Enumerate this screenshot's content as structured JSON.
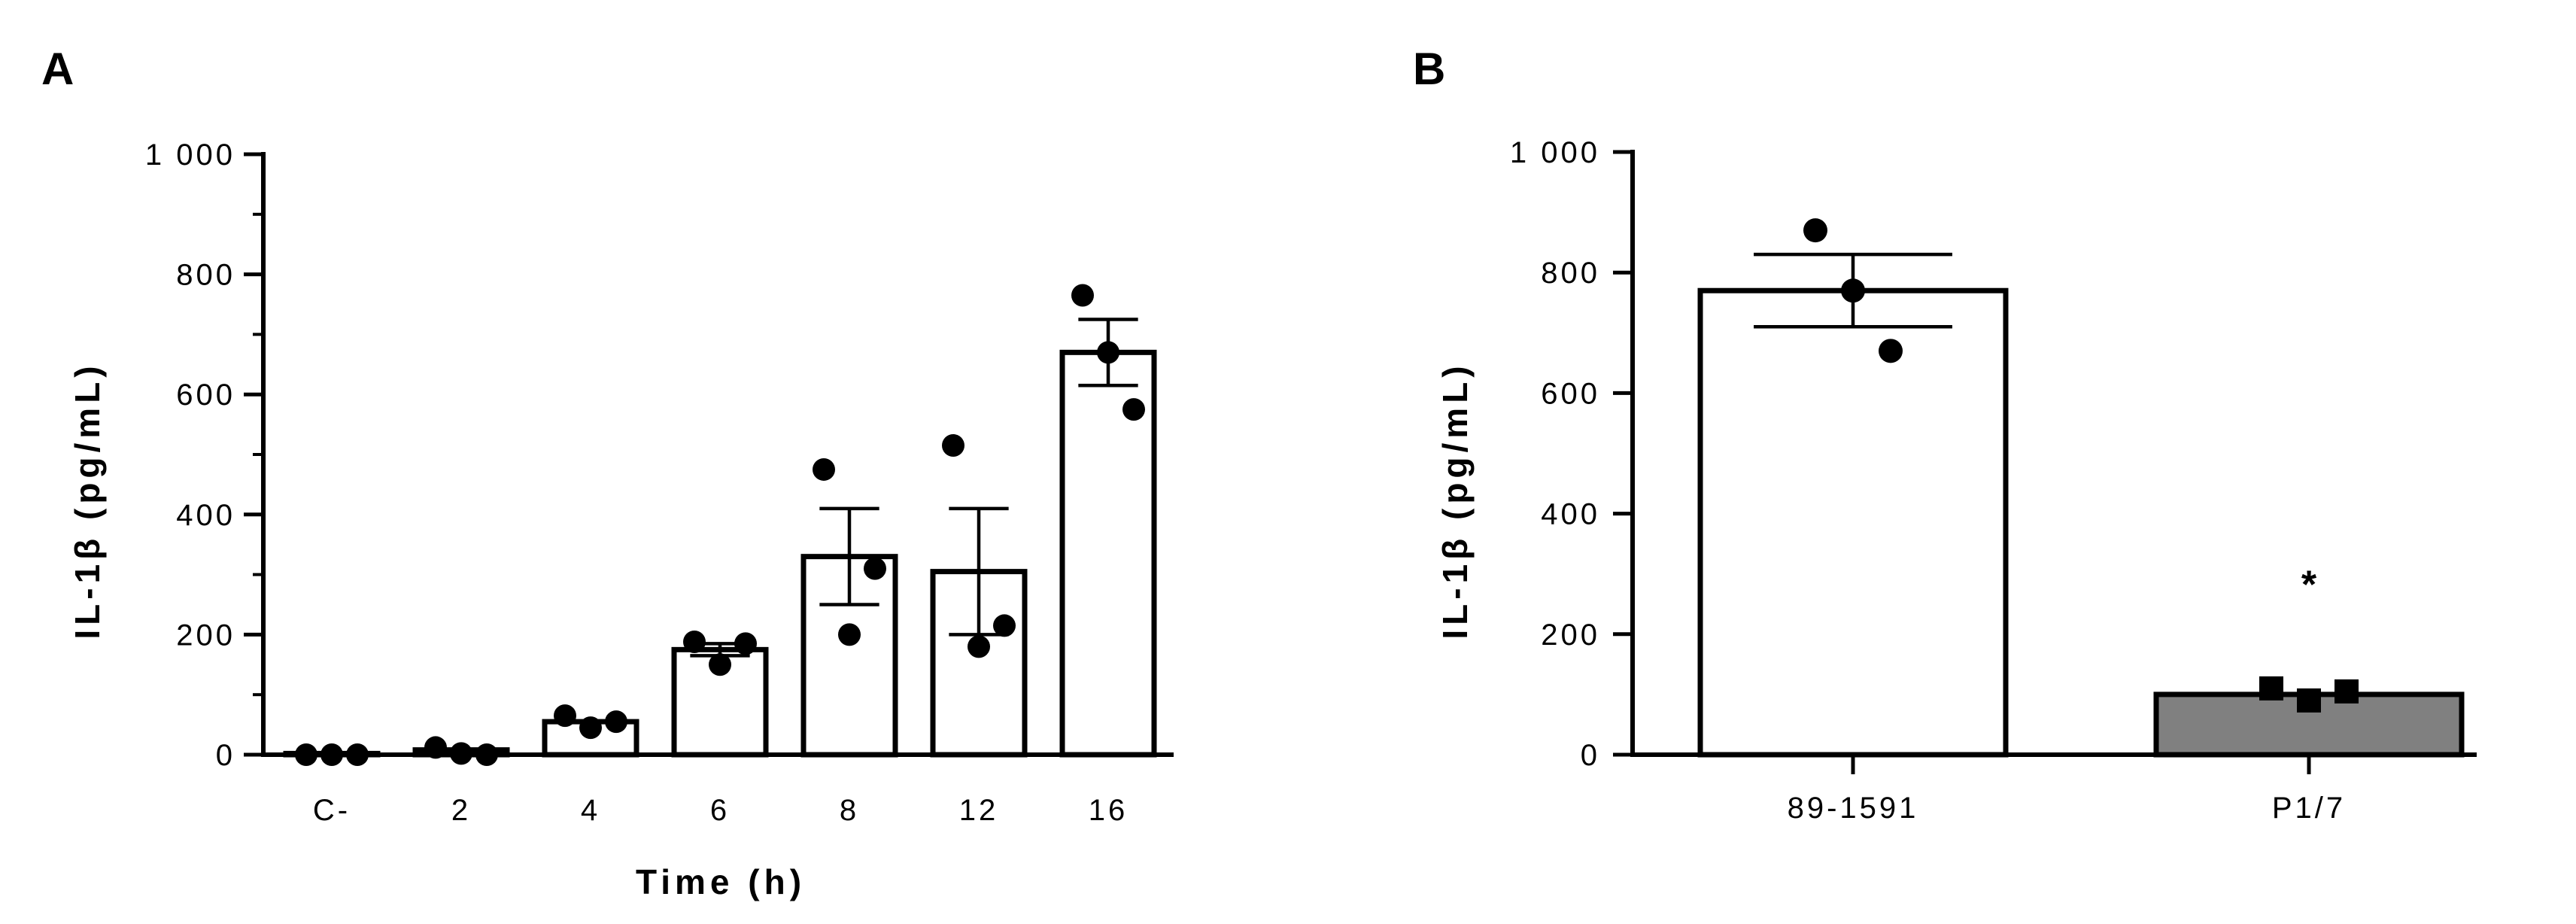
{
  "chart_data": [
    {
      "panel": "A",
      "type": "bar",
      "title": "",
      "xlabel": "Time (h)",
      "ylabel": "IL-1β (pg/mL)",
      "ylim": [
        0,
        1000
      ],
      "yticks": [
        0,
        200,
        400,
        600,
        800,
        1000
      ],
      "ytick_labels": [
        "0",
        "200",
        "400",
        "600",
        "800",
        "1 000"
      ],
      "minor_ticks": [
        100,
        300,
        500,
        700,
        900
      ],
      "categories": [
        "C-",
        "2",
        "4",
        "6",
        "8",
        "12",
        "16"
      ],
      "values": [
        2,
        8,
        55,
        175,
        330,
        305,
        670
      ],
      "errors": [
        0,
        0,
        0,
        10,
        80,
        105,
        55
      ],
      "points": [
        [
          0,
          0,
          0
        ],
        [
          12,
          2,
          0
        ],
        [
          65,
          45,
          55
        ],
        [
          188,
          150,
          185
        ],
        [
          475,
          200,
          310
        ],
        [
          515,
          180,
          215
        ],
        [
          765,
          670,
          575
        ]
      ],
      "bar_fills": [
        "#ffffff",
        "#ffffff",
        "#ffffff",
        "#ffffff",
        "#ffffff",
        "#ffffff",
        "#ffffff"
      ],
      "marker": "circle",
      "significance": [
        "",
        "",
        "",
        "",
        "",
        "",
        ""
      ]
    },
    {
      "panel": "B",
      "type": "bar",
      "title": "",
      "xlabel": "",
      "ylabel": "IL-1β (pg/mL)",
      "ylim": [
        0,
        1000
      ],
      "yticks": [
        0,
        200,
        400,
        600,
        800,
        1000
      ],
      "ytick_labels": [
        "0",
        "200",
        "400",
        "600",
        "800",
        "1 000"
      ],
      "minor_ticks": [],
      "categories": [
        "89-1591",
        "P1/7"
      ],
      "values": [
        770,
        100
      ],
      "errors": [
        60,
        0
      ],
      "points": [
        [
          870,
          770,
          670
        ],
        [
          110,
          90,
          105
        ]
      ],
      "point_markers": [
        "circle",
        "square"
      ],
      "bar_fills": [
        "#ffffff",
        "#808080"
      ],
      "significance": [
        "",
        "*"
      ]
    }
  ]
}
